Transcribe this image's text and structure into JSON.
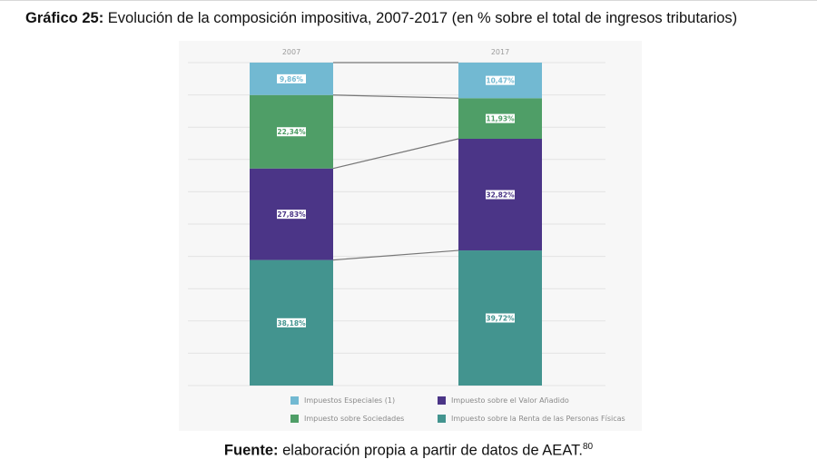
{
  "title": {
    "label": "Gráfico 25:",
    "text": "Evolución de la composición impositiva, 2007-2017 (en % sobre el total de ingresos tributarios)"
  },
  "chart_data": {
    "type": "bar",
    "stacked": true,
    "normalized": true,
    "categories": [
      "2007",
      "2017"
    ],
    "series": [
      {
        "name": "Impuesto sobre la Renta de las Personas Físicas",
        "values": [
          38.18,
          39.72
        ],
        "labels": [
          "38,18%",
          "39,72%"
        ],
        "color": "#43948f"
      },
      {
        "name": "Impuesto sobre el Valor Añadido",
        "values": [
          27.83,
          32.82
        ],
        "labels": [
          "27,83%",
          "32,82%"
        ],
        "color": "#4b3587"
      },
      {
        "name": "Impuesto sobre Sociedades",
        "values": [
          22.34,
          11.93
        ],
        "labels": [
          "22,34%",
          "11,93%"
        ],
        "color": "#4f9e67"
      },
      {
        "name": "Impuestos Especiales (1)",
        "values": [
          9.86,
          10.47
        ],
        "labels": [
          "9,86%",
          "10,47%"
        ],
        "color": "#72b9d2"
      }
    ],
    "ylim": [
      0,
      100
    ],
    "grid": true,
    "connector_lines": true,
    "legend_position": "bottom"
  },
  "legend": {
    "items": [
      {
        "label": "Impuestos Especiales (1)",
        "color": "#72b9d2"
      },
      {
        "label": "Impuesto sobre el Valor Añadido",
        "color": "#4b3587"
      },
      {
        "label": "Impuesto sobre Sociedades",
        "color": "#4f9e67"
      },
      {
        "label": "Impuesto sobre la Renta de las Personas Físicas",
        "color": "#43948f"
      }
    ]
  },
  "source": {
    "label": "Fuente:",
    "text": "elaboración propia a partir de datos de AEAT.",
    "footnote": "80"
  }
}
